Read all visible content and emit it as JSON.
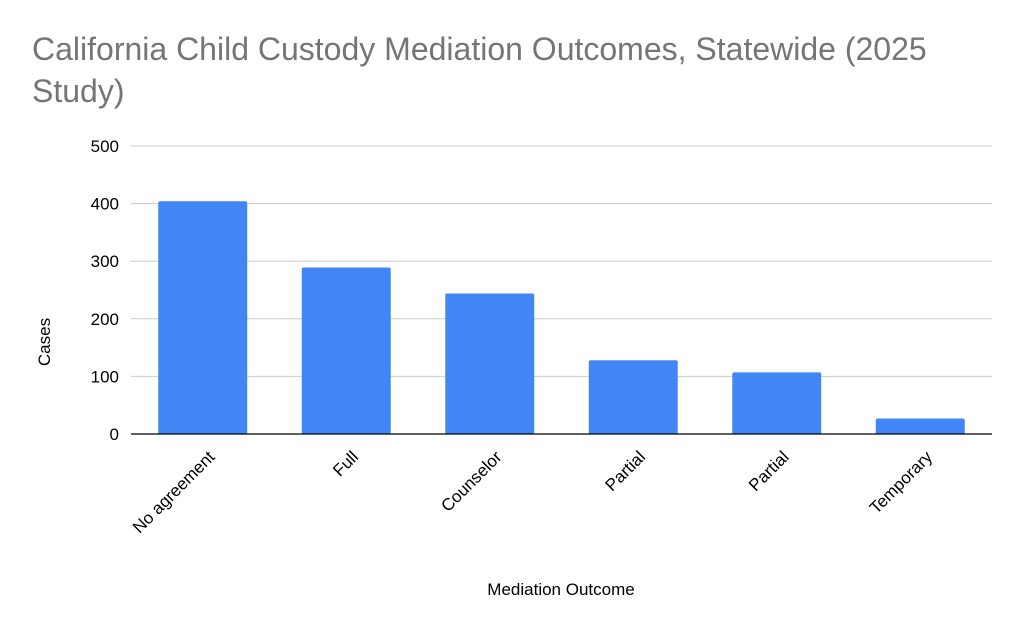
{
  "chart_data": {
    "type": "bar",
    "title": "California Child Custody Mediation Outcomes, Statewide (2025 Study)",
    "xlabel": "Mediation Outcome",
    "ylabel": "Cases",
    "categories": [
      "No agreement",
      "Full",
      "Counselor",
      "Partial",
      "Partial",
      "Temporary"
    ],
    "values": [
      404,
      289,
      244,
      128,
      107,
      27
    ],
    "ylim": [
      0,
      500
    ],
    "yticks": [
      0,
      100,
      200,
      300,
      400,
      500
    ],
    "grid": true,
    "legend": "none",
    "bar_color": "#4285f4",
    "grid_color": "#cccccc",
    "axis_color": "#000000",
    "title_color": "#757575"
  }
}
